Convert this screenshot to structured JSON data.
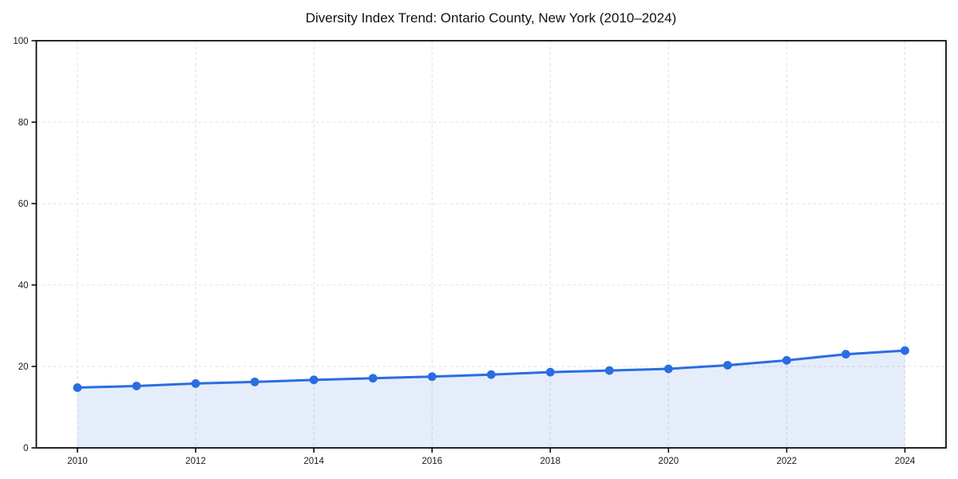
{
  "chart_data": {
    "type": "line",
    "title": "Diversity Index Trend: Ontario County, New York (2010–2024)",
    "xlabel": "",
    "ylabel": "",
    "x": [
      2010,
      2011,
      2012,
      2013,
      2014,
      2015,
      2016,
      2017,
      2018,
      2019,
      2020,
      2021,
      2022,
      2023,
      2024
    ],
    "values": [
      14.8,
      15.2,
      15.8,
      16.2,
      16.7,
      17.1,
      17.5,
      18.0,
      18.6,
      19.0,
      19.4,
      20.3,
      21.5,
      23.0,
      23.9
    ],
    "series_name": "Diversity Index",
    "xticks": [
      2010,
      2012,
      2014,
      2016,
      2018,
      2020,
      2022,
      2024
    ],
    "yticks": [
      0,
      20,
      40,
      60,
      80,
      100
    ],
    "xlim": [
      2010,
      2024
    ],
    "ylim": [
      0,
      100
    ],
    "grid": true,
    "legend": false,
    "area_fill": true,
    "line_color": "#2a6de0",
    "marker_color": "#2a6de0",
    "fill_color": "rgba(42, 109, 224, 0.12)",
    "grid_color": "#e3e3e3",
    "spine_color": "#000000",
    "tick_label_color": "#1a1a1a",
    "background_color": "#ffffff"
  }
}
